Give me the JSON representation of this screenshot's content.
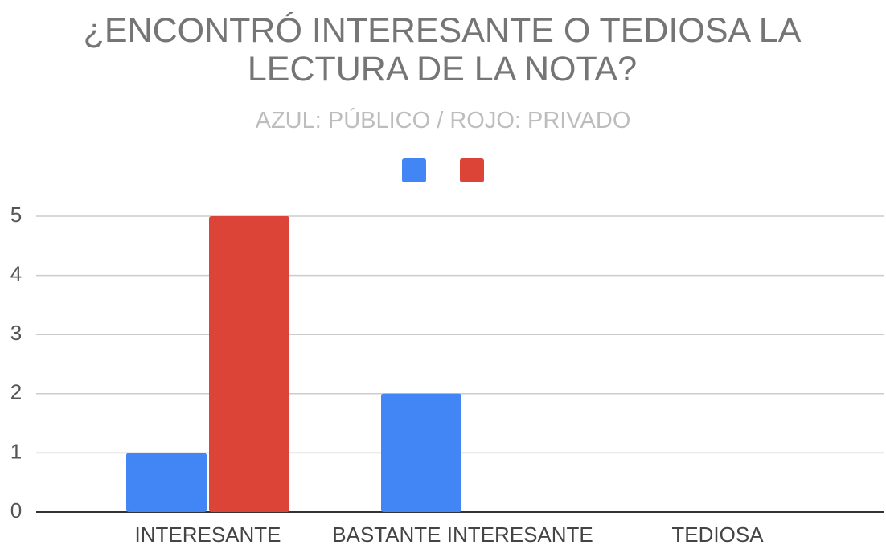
{
  "chart_data": {
    "type": "bar",
    "title": "¿ENCONTRÓ INTERESANTE O TEDIOSA LA LECTURA DE LA NOTA?",
    "subtitle": "AZUL: PÚBLICO / ROJO: PRIVADO",
    "categories": [
      "INTERESANTE",
      "BASTANTE INTERESANTE",
      "TEDIOSA"
    ],
    "series": [
      {
        "color": "#4285f4",
        "values": [
          1,
          2,
          0
        ]
      },
      {
        "color": "#db4437",
        "values": [
          5,
          0,
          0
        ]
      }
    ],
    "ylim": [
      0,
      5
    ],
    "yticks": [
      0,
      1,
      2,
      3,
      4,
      5
    ],
    "grid": true,
    "legend": "top"
  }
}
